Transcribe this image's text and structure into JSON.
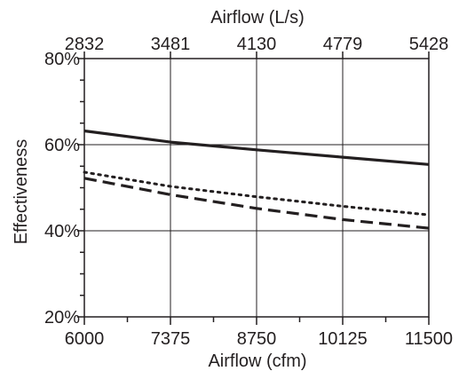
{
  "chart_data": {
    "type": "line",
    "xlabel": "Airflow (cfm)",
    "x2label": "Airflow (L/s)",
    "ylabel": "Effectiveness",
    "xlim": [
      6000,
      11500
    ],
    "ylim": [
      20,
      80
    ],
    "x_ticks": [
      "6000",
      "7375",
      "8750",
      "10125",
      "11500"
    ],
    "x2_ticks": [
      "2832",
      "3481",
      "4130",
      "4779",
      "5428"
    ],
    "y_ticks": [
      "20%",
      "40%",
      "60%",
      "80%"
    ],
    "grid": true,
    "legend": "none",
    "series": [
      {
        "style": "solid",
        "x": [
          6000,
          7375,
          8750,
          10125,
          11500
        ],
        "y": [
          63.2,
          60.6,
          58.8,
          57.1,
          55.4
        ]
      },
      {
        "style": "dotted",
        "x": [
          6000,
          7375,
          8750,
          10125,
          11500
        ],
        "y": [
          53.6,
          50.3,
          47.9,
          45.7,
          43.7
        ]
      },
      {
        "style": "dashed",
        "x": [
          6000,
          7375,
          8750,
          10125,
          11500
        ],
        "y": [
          52.2,
          48.4,
          45.2,
          42.6,
          40.6
        ]
      }
    ]
  }
}
